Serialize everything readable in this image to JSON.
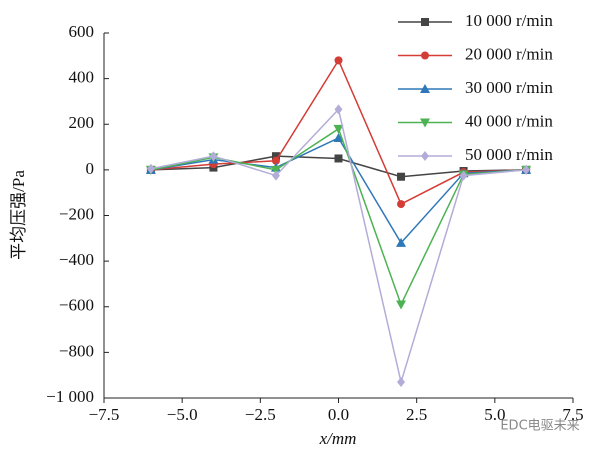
{
  "chart_data": {
    "type": "line",
    "y_label": "平均压强/Pa",
    "x_label": "x/mm",
    "watermark": "EDC电驱未来",
    "x": [
      -6,
      -4,
      -2,
      0,
      2,
      4,
      6
    ],
    "series": [
      {
        "name": "10 000 r/min",
        "color": "#444444",
        "marker": "square",
        "values": [
          0,
          10,
          60,
          50,
          -30,
          -5,
          0
        ]
      },
      {
        "name": "20 000 r/min",
        "color": "#d43c36",
        "marker": "circle",
        "values": [
          0,
          25,
          40,
          480,
          -150,
          -10,
          0
        ]
      },
      {
        "name": "30 000 r/min",
        "color": "#2f78b8",
        "marker": "triangle",
        "values": [
          0,
          45,
          10,
          140,
          -320,
          -15,
          0
        ]
      },
      {
        "name": "40 000 r/min",
        "color": "#4db352",
        "marker": "triangle-down",
        "values": [
          0,
          55,
          0,
          180,
          -590,
          -20,
          0
        ]
      },
      {
        "name": "50 000 r/min",
        "color": "#b3acd8",
        "marker": "diamond",
        "values": [
          5,
          60,
          -25,
          265,
          -930,
          -25,
          0
        ]
      }
    ],
    "xlim": [
      -7.5,
      7.5
    ],
    "xticks": [
      {
        "value": -7.5,
        "label": "−7.5"
      },
      {
        "value": -5,
        "label": "−5.0"
      },
      {
        "value": -2.5,
        "label": "−2.5"
      },
      {
        "value": 0,
        "label": "0.0"
      },
      {
        "value": 2.5,
        "label": "2.5"
      },
      {
        "value": 5,
        "label": "5.0"
      },
      {
        "value": 7.5,
        "label": "7.5"
      }
    ],
    "ylim": [
      -1000,
      600
    ],
    "yticks": [
      {
        "value": -1000,
        "label": "−1 000"
      },
      {
        "value": -800,
        "label": "−800"
      },
      {
        "value": -600,
        "label": "−600"
      },
      {
        "value": -400,
        "label": "−400"
      },
      {
        "value": -200,
        "label": "−200"
      },
      0,
      200,
      400,
      600
    ]
  }
}
